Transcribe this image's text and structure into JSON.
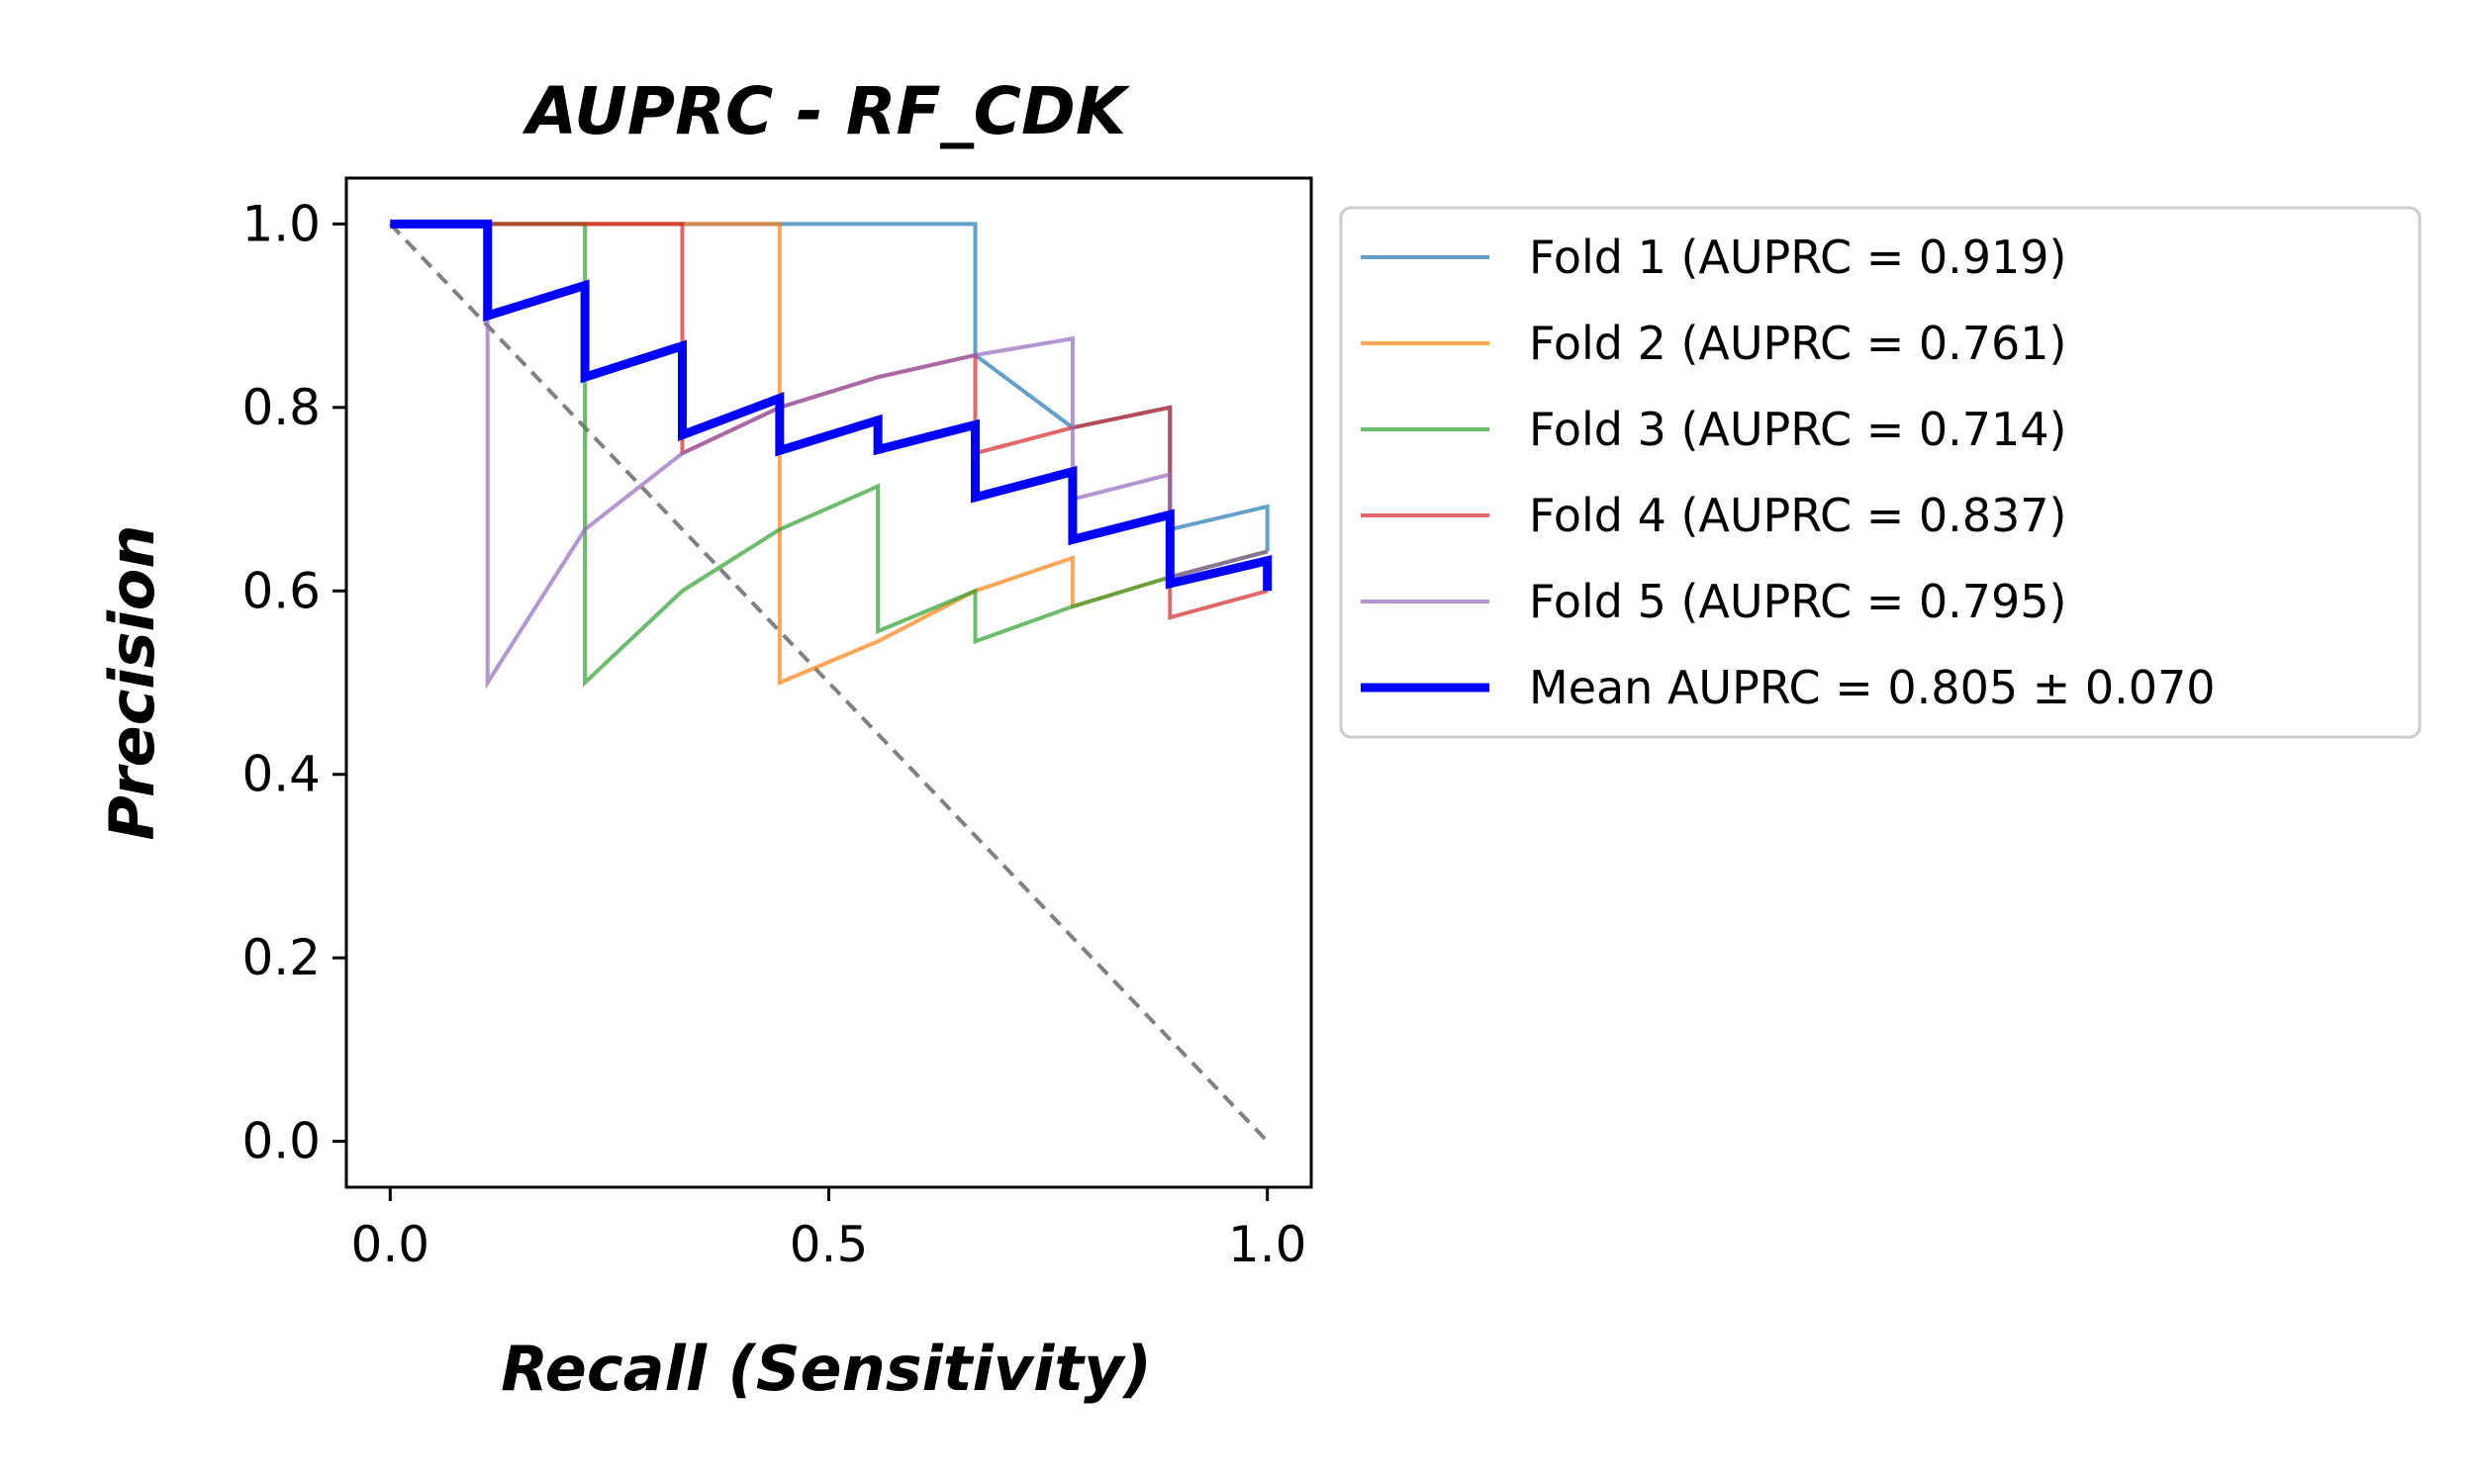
{
  "chart_data": {
    "type": "line",
    "title": "AUPRC - RF_CDK",
    "xlabel": "Recall (Sensitivity)",
    "ylabel": "Precision",
    "xlim": [
      -0.05,
      1.05
    ],
    "ylim": [
      -0.05,
      1.05
    ],
    "x_ticks": [
      0.0,
      0.5,
      1.0
    ],
    "x_tick_labels": [
      "0.0",
      "0.5",
      "1.0"
    ],
    "y_ticks": [
      0.0,
      0.2,
      0.4,
      0.6,
      0.8,
      1.0
    ],
    "y_tick_labels": [
      "0.0",
      "0.2",
      "0.4",
      "0.6",
      "0.8",
      "1.0"
    ],
    "grid": false,
    "legend_position": "outside-right-top",
    "series": [
      {
        "name": "Fold 1 (AUPRC = 0.919)",
        "color": "#1f77b4",
        "x": [
          0,
          0.111,
          0.222,
          0.333,
          0.444,
          0.556,
          0.667,
          0.667,
          0.778,
          0.889,
          0.889,
          1.0,
          1.0
        ],
        "y": [
          1.0,
          1.0,
          1.0,
          1.0,
          1.0,
          1.0,
          1.0,
          0.857,
          0.778,
          0.8,
          0.667,
          0.692,
          0.643
        ]
      },
      {
        "name": "Fold 2 (AUPRC = 0.761)",
        "color": "#ff7f0e",
        "x": [
          0,
          0.111,
          0.222,
          0.333,
          0.444,
          0.444,
          0.556,
          0.667,
          0.778,
          0.778,
          0.889,
          1.0
        ],
        "y": [
          1.0,
          1.0,
          1.0,
          1.0,
          1.0,
          0.5,
          0.545,
          0.6,
          0.636,
          0.583,
          0.615,
          0.643
        ]
      },
      {
        "name": "Fold 3 (AUPRC = 0.714)",
        "color": "#2ca02c",
        "x": [
          0,
          0.111,
          0.222,
          0.222,
          0.333,
          0.444,
          0.556,
          0.556,
          0.667,
          0.667,
          0.778,
          0.889,
          1.0
        ],
        "y": [
          1.0,
          1.0,
          1.0,
          0.5,
          0.6,
          0.667,
          0.714,
          0.556,
          0.6,
          0.545,
          0.583,
          0.615,
          0.643
        ]
      },
      {
        "name": "Fold 4 (AUPRC = 0.837)",
        "color": "#d62728",
        "x": [
          0,
          0.111,
          0.222,
          0.333,
          0.333,
          0.444,
          0.556,
          0.667,
          0.667,
          0.778,
          0.889,
          0.889,
          1.0
        ],
        "y": [
          1.0,
          1.0,
          1.0,
          1.0,
          0.75,
          0.8,
          0.833,
          0.857,
          0.75,
          0.778,
          0.8,
          0.571,
          0.6
        ]
      },
      {
        "name": "Fold 5 (AUPRC = 0.795)",
        "color": "#9467bd",
        "x": [
          0,
          0.111,
          0.111,
          0.222,
          0.333,
          0.444,
          0.556,
          0.667,
          0.778,
          0.778,
          0.889,
          0.889,
          1.0
        ],
        "y": [
          1.0,
          1.0,
          0.5,
          0.667,
          0.75,
          0.8,
          0.833,
          0.857,
          0.875,
          0.7,
          0.727,
          0.615,
          0.643
        ]
      },
      {
        "name": "Mean AUPRC = 0.805 ± 0.070",
        "color": "#0000ff",
        "x": [
          0,
          0.111,
          0.111,
          0.222,
          0.222,
          0.333,
          0.333,
          0.444,
          0.444,
          0.556,
          0.556,
          0.667,
          0.667,
          0.778,
          0.778,
          0.889,
          0.889,
          1.0,
          1.0
        ],
        "y": [
          1.0,
          1.0,
          0.9,
          0.933,
          0.833,
          0.867,
          0.77,
          0.81,
          0.753,
          0.786,
          0.754,
          0.781,
          0.702,
          0.73,
          0.656,
          0.683,
          0.608,
          0.633,
          0.6
        ]
      }
    ],
    "reference_line": {
      "style": "dashed",
      "color": "#808080",
      "x": [
        0,
        1
      ],
      "y": [
        1,
        0
      ]
    }
  }
}
